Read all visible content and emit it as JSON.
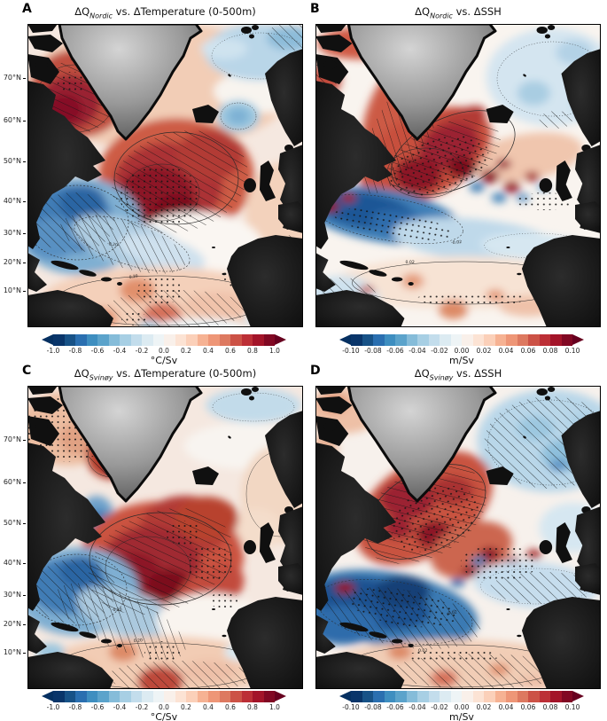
{
  "figure": {
    "background": "#ffffff",
    "lat_labels": [
      "70°N",
      "60°N",
      "50°N",
      "40°N",
      "30°N",
      "20°N",
      "10°N"
    ],
    "colormap": [
      "#09356a",
      "#175287",
      "#2a6fb0",
      "#3e8ec0",
      "#5ba3cb",
      "#85bcd9",
      "#a7cfe4",
      "#c3ddec",
      "#dcebf2",
      "#eef4f6",
      "#f9f0ea",
      "#fce3d4",
      "#fbd0b9",
      "#f6b293",
      "#ee9677",
      "#dd7960",
      "#cc5246",
      "#bc2f36",
      "#a31429",
      "#810823"
    ],
    "extend_left": "#053061",
    "extend_right": "#67001f"
  },
  "panels": [
    {
      "id": "A",
      "title": {
        "q": "ΔQ",
        "sub": "Nordic",
        "rest": " vs. ΔTemperature (0-500m)"
      },
      "colorbar": {
        "ticks": [
          "-1.0",
          "-0.8",
          "-0.6",
          "-0.4",
          "-0.2",
          "0.0",
          "0.2",
          "0.4",
          "0.6",
          "0.8",
          "1.0"
        ],
        "unit": "°C/Sv"
      },
      "contour_labels": [
        "0.20",
        "-0.20"
      ]
    },
    {
      "id": "B",
      "title": {
        "q": "ΔQ",
        "sub": "Nordic",
        "rest": " vs. ΔSSH"
      },
      "colorbar": {
        "ticks": [
          "-0.10",
          "-0.08",
          "-0.06",
          "-0.04",
          "-0.02",
          "0.00",
          "0.02",
          "0.04",
          "0.06",
          "0.08",
          "0.10"
        ],
        "unit": "m/Sv"
      },
      "contour_labels": [
        "0.02",
        "-0.02"
      ]
    },
    {
      "id": "C",
      "title": {
        "q": "ΔQ",
        "sub": "Svinøy",
        "rest": " vs. ΔTemperature (0-500m)"
      },
      "colorbar": {
        "ticks": [
          "-1.0",
          "-0.8",
          "-0.6",
          "-0.4",
          "-0.2",
          "0.0",
          "0.2",
          "0.4",
          "0.6",
          "0.8",
          "1.0"
        ],
        "unit": "°C/Sv"
      },
      "contour_labels": [
        "0.20",
        "-0.20"
      ]
    },
    {
      "id": "D",
      "title": {
        "q": "ΔQ",
        "sub": "Svinøy",
        "rest": " vs. ΔSSH"
      },
      "colorbar": {
        "ticks": [
          "-0.10",
          "-0.08",
          "-0.06",
          "-0.04",
          "-0.02",
          "0.00",
          "0.02",
          "0.04",
          "0.06",
          "0.08",
          "0.10"
        ],
        "unit": "m/Sv"
      },
      "contour_labels": [
        "0.02",
        "-0.02"
      ]
    }
  ],
  "chart_data": [
    {
      "panel": "A",
      "type": "heatmap",
      "subtype": "filled-contour-map",
      "region": "North Atlantic",
      "title": "ΔQ_Nordic vs. ΔTemperature (0-500m)",
      "units": "°C/Sv",
      "colorbar_ticks": [
        -1.0,
        -0.8,
        -0.6,
        -0.4,
        -0.2,
        0.0,
        0.2,
        0.4,
        0.6,
        0.8,
        1.0
      ],
      "colorbar_range": [
        -1.0,
        1.0
      ],
      "lat_ticks_deg_n": [
        70,
        60,
        50,
        40,
        30,
        20,
        10
      ],
      "features": "strong positive (>0.8 °C/Sv) subpolar gyre south of Iceland and in Labrador/Baffin region with hatching and stippling; negative (-0.6) region off US east coast; weak positive tropics; light negative Nordic Seas"
    },
    {
      "panel": "B",
      "type": "heatmap",
      "subtype": "filled-contour-map",
      "region": "North Atlantic",
      "title": "ΔQ_Nordic vs. ΔSSH",
      "units": "m/Sv",
      "colorbar_ticks": [
        -0.1,
        -0.08,
        -0.06,
        -0.04,
        -0.02,
        0.0,
        0.02,
        0.04,
        0.06,
        0.08,
        0.1
      ],
      "colorbar_range": [
        -0.1,
        0.1
      ],
      "lat_ticks_deg_n": [
        70,
        60,
        50,
        40,
        30,
        20,
        10
      ],
      "features": "positive rim (~0.06 m/Sv) around southern Greenland, hatched; alternating eddy-scale anomalies along North Atlantic Current; strong negative band (-0.08) along Gulf Stream; weak positive subtropics; weak negative Nordic Seas"
    },
    {
      "panel": "C",
      "type": "heatmap",
      "subtype": "filled-contour-map",
      "region": "North Atlantic",
      "title": "ΔQ_Svinøy vs. ΔTemperature (0-500m)",
      "units": "°C/Sv",
      "colorbar_ticks": [
        -1.0,
        -0.8,
        -0.6,
        -0.4,
        -0.2,
        0.0,
        0.2,
        0.4,
        0.6,
        0.8,
        1.0
      ],
      "colorbar_range": [
        -1.0,
        1.0
      ],
      "lat_ticks_deg_n": [
        70,
        60,
        50,
        40,
        30,
        20,
        10
      ],
      "features": "strong positive subpolar gyre shifted toward Irminger Sea, hatched; stippled positive Baffin Bay; small negative Labrador spot; negative region off US east coast; positive tropics blob near equator"
    },
    {
      "panel": "D",
      "type": "heatmap",
      "subtype": "filled-contour-map",
      "region": "North Atlantic",
      "title": "ΔQ_Svinøy vs. ΔSSH",
      "units": "m/Sv",
      "colorbar_ticks": [
        -0.1,
        -0.08,
        -0.06,
        -0.04,
        -0.02,
        0.0,
        0.02,
        0.04,
        0.06,
        0.08,
        0.1
      ],
      "colorbar_range": [
        -0.1,
        0.1
      ],
      "lat_ticks_deg_n": [
        70,
        60,
        50,
        40,
        30,
        20,
        10
      ],
      "features": "hatched negative Nordic Seas; hatched positive wedge southeast of Greenland; strong negative (-0.10) Gulf Stream band, hatched; weak positive hatched subtropics"
    }
  ]
}
